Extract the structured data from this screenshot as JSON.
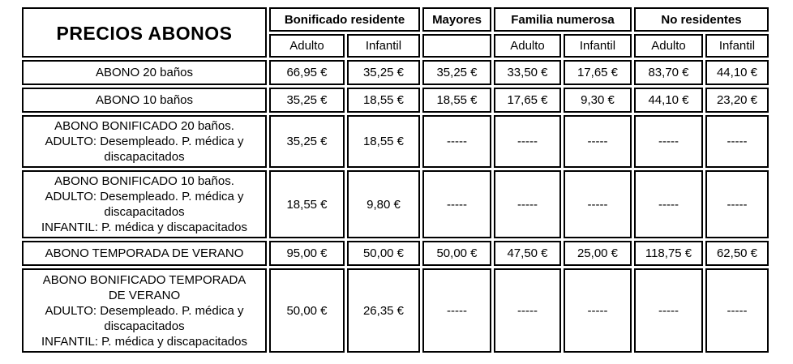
{
  "title": "PRECIOS ABONOS",
  "table": {
    "groups": [
      {
        "label": "Bonificado residente"
      },
      {
        "label": "Mayores"
      },
      {
        "label": "Familia numerosa"
      },
      {
        "label": "No residentes"
      }
    ],
    "subheaders": [
      "Adulto",
      "Infantil",
      "",
      "Adulto",
      "Infantil",
      "Adulto",
      "Infantil"
    ],
    "empty_value": "-----",
    "rows": [
      {
        "label": "ABONO 20 baños",
        "values": [
          "66,95 €",
          "35,25 €",
          "35,25 €",
          "33,50 €",
          "17,65 €",
          "83,70 €",
          "44,10 €"
        ]
      },
      {
        "label": "ABONO 10 baños",
        "values": [
          "35,25 €",
          "18,55 €",
          "18,55 €",
          "17,65 €",
          "9,30 €",
          "44,10 €",
          "23,20 €"
        ]
      },
      {
        "label": "ABONO BONIFICADO 20 baños.\nADULTO: Desempleado. P. médica y\ndiscapacitados",
        "values": [
          "35,25 €",
          "18,55 €",
          "-----",
          "-----",
          "-----",
          "-----",
          "-----"
        ]
      },
      {
        "label": "ABONO BONIFICADO 10 baños.\nADULTO: Desempleado. P. médica y\ndiscapacitados\nINFANTIL: P. médica y discapacitados",
        "values": [
          "18,55 €",
          "9,80 €",
          "-----",
          "-----",
          "-----",
          "-----",
          "-----"
        ]
      },
      {
        "label": "ABONO TEMPORADA  DE VERANO",
        "values": [
          "95,00 €",
          "50,00 €",
          "50,00 €",
          "47,50 €",
          "25,00 €",
          "118,75 €",
          "62,50 €"
        ]
      },
      {
        "label": "ABONO BONIFICADO TEMPORADA\nDE VERANO\nADULTO: Desempleado. P. médica y\ndiscapacitados\nINFANTIL: P. médica y discapacitados",
        "values": [
          "50,00 €",
          "26,35 €",
          "-----",
          "-----",
          "-----",
          "-----",
          "-----"
        ]
      }
    ]
  }
}
